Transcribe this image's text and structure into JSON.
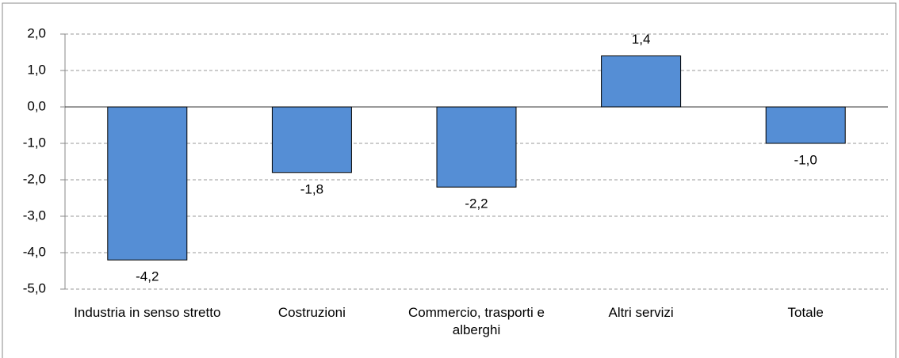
{
  "chart_data": {
    "type": "bar",
    "categories": [
      "Industria in senso stretto",
      "Costruzioni",
      "Commercio, trasporti e alberghi",
      "Altri servizi",
      "Totale"
    ],
    "values": [
      -4.2,
      -1.8,
      -2.2,
      1.4,
      -1.0
    ],
    "value_labels": [
      "-4,2",
      "-1,8",
      "-2,2",
      "1,4",
      "-1,0"
    ],
    "color": "#558ed5",
    "ylim": [
      -5,
      2
    ],
    "yticks": [
      {
        "value": -5,
        "label": "-5,0"
      },
      {
        "value": -4,
        "label": "-4,0"
      },
      {
        "value": -3,
        "label": "-3,0"
      },
      {
        "value": -2,
        "label": "-2,0"
      },
      {
        "value": -1,
        "label": "-1,0"
      },
      {
        "value": 0,
        "label": "0,0"
      },
      {
        "value": 1,
        "label": "1,0"
      },
      {
        "value": 2,
        "label": "2,0"
      }
    ],
    "grid": true
  }
}
